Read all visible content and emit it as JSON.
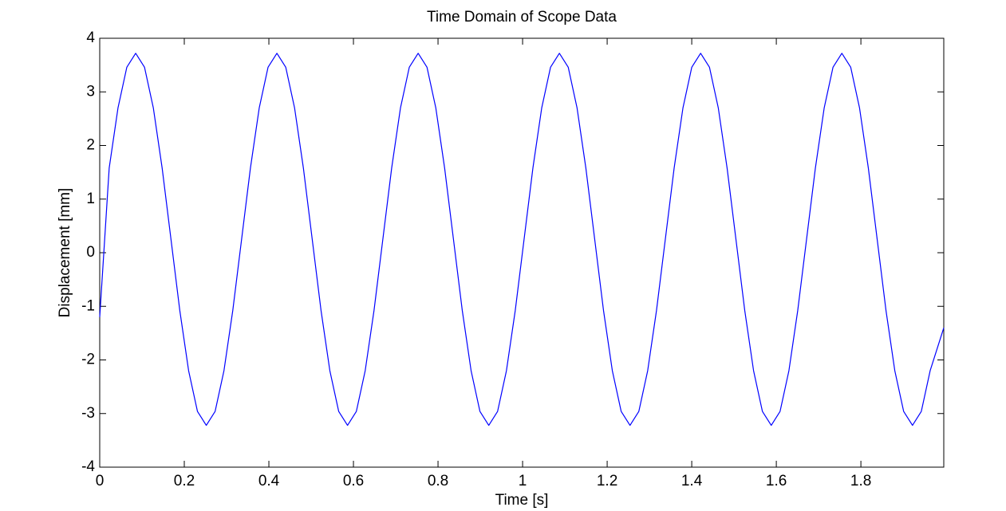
{
  "chart_data": {
    "type": "line",
    "title": "Time Domain of Scope Data",
    "xlabel": "Time [s]",
    "ylabel": "Displacement [mm]",
    "xlim": [
      0,
      1.996
    ],
    "ylim": [
      -4,
      4
    ],
    "xticks": [
      0,
      0.2,
      0.4,
      0.6,
      0.8,
      1,
      1.2,
      1.4,
      1.6,
      1.8
    ],
    "yticks": [
      -4,
      -3,
      -2,
      -1,
      0,
      1,
      2,
      3,
      4
    ],
    "grid": false,
    "x": [
      0,
      0.0224,
      0.0432,
      0.0641,
      0.085,
      0.1059,
      0.1268,
      0.1476,
      0.1685,
      0.1894,
      0.2102,
      0.2311,
      0.252,
      0.2729,
      0.2938,
      0.3146,
      0.3355,
      0.3564,
      0.3772,
      0.3981,
      0.419,
      0.4399,
      0.4608,
      0.4816,
      0.5025,
      0.5234,
      0.5442,
      0.5651,
      0.586,
      0.6069,
      0.6278,
      0.6486,
      0.6695,
      0.6904,
      0.7112,
      0.7321,
      0.753,
      0.7739,
      0.7948,
      0.8156,
      0.8365,
      0.8574,
      0.8782,
      0.8991,
      0.92,
      0.9409,
      0.9618,
      0.9826,
      1.0035,
      1.0244,
      1.0452,
      1.0661,
      1.087,
      1.1079,
      1.1288,
      1.1496,
      1.1705,
      1.1914,
      1.2122,
      1.2331,
      1.254,
      1.2749,
      1.2958,
      1.3166,
      1.3375,
      1.3584,
      1.3792,
      1.4001,
      1.421,
      1.4419,
      1.4628,
      1.4836,
      1.5045,
      1.5254,
      1.5462,
      1.5671,
      1.588,
      1.6089,
      1.6298,
      1.6506,
      1.6715,
      1.6924,
      1.7132,
      1.7341,
      1.755,
      1.7759,
      1.7968,
      1.8176,
      1.8385,
      1.8594,
      1.8802,
      1.9011,
      1.922,
      1.9429,
      1.9638,
      1.996
    ],
    "series": [
      {
        "color": "#0000ff",
        "values": [
          -1.2,
          1.58,
          2.7,
          3.46,
          3.72,
          3.46,
          2.7,
          1.58,
          0.25,
          -1.08,
          -2.2,
          -2.96,
          -3.22,
          -2.96,
          -2.2,
          -1.08,
          0.25,
          1.58,
          2.7,
          3.46,
          3.72,
          3.46,
          2.7,
          1.58,
          0.25,
          -1.08,
          -2.2,
          -2.96,
          -3.22,
          -2.96,
          -2.2,
          -1.08,
          0.25,
          1.58,
          2.7,
          3.46,
          3.72,
          3.46,
          2.7,
          1.58,
          0.25,
          -1.08,
          -2.2,
          -2.96,
          -3.22,
          -2.96,
          -2.2,
          -1.08,
          0.25,
          1.58,
          2.7,
          3.46,
          3.72,
          3.46,
          2.7,
          1.58,
          0.25,
          -1.08,
          -2.2,
          -2.96,
          -3.22,
          -2.96,
          -2.2,
          -1.08,
          0.25,
          1.58,
          2.7,
          3.46,
          3.72,
          3.46,
          2.7,
          1.58,
          0.25,
          -1.08,
          -2.2,
          -2.96,
          -3.22,
          -2.96,
          -2.2,
          -1.08,
          0.25,
          1.58,
          2.7,
          3.46,
          3.72,
          3.46,
          2.7,
          1.58,
          0.25,
          -1.08,
          -2.2,
          -2.96,
          -3.22,
          -2.96,
          -2.2,
          -1.4
        ]
      }
    ]
  }
}
